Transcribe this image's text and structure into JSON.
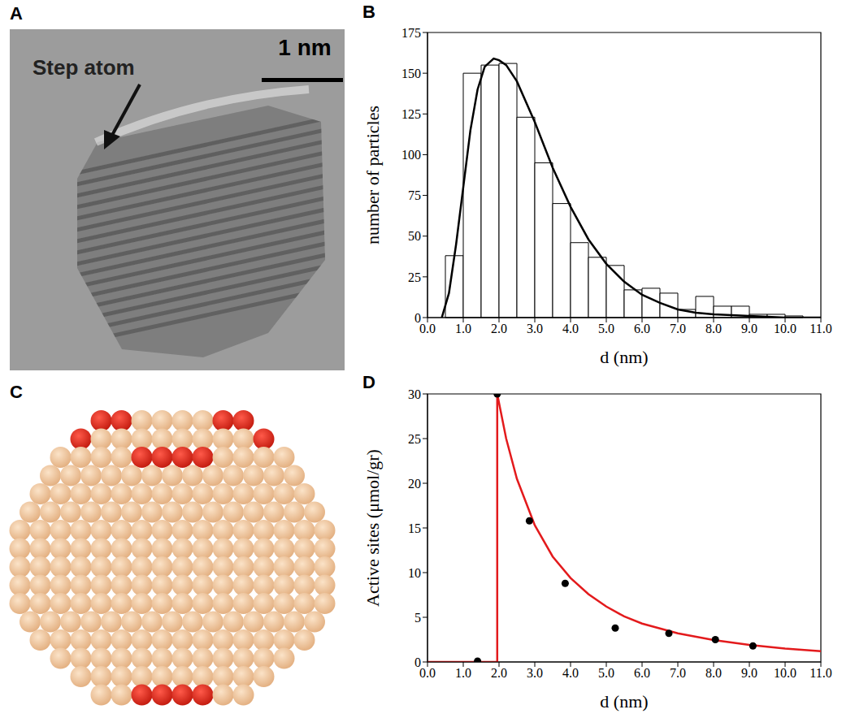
{
  "panels": {
    "A": {
      "label": "A",
      "annotation": "Step atom",
      "scale_bar": "1 nm"
    },
    "C": {
      "label": "C"
    }
  },
  "chart_data": [
    {
      "panel": "B",
      "type": "histogram",
      "x_label": "d (nm)",
      "y_label": "number of particles",
      "bins": [
        0.5,
        1.0,
        1.5,
        2.0,
        2.5,
        3.0,
        3.5,
        4.0,
        4.5,
        5.0,
        5.5,
        6.0,
        6.5,
        7.0,
        7.5,
        8.0,
        8.5,
        9.0,
        9.5,
        10.0,
        10.5
      ],
      "counts": [
        38,
        150,
        155,
        156,
        123,
        95,
        70,
        46,
        37,
        32,
        17,
        18,
        15,
        5,
        13,
        7,
        7,
        2,
        2,
        1
      ],
      "fit": {
        "x": [
          0.4,
          0.6,
          0.8,
          1.0,
          1.2,
          1.4,
          1.6,
          1.85,
          2.0,
          2.2,
          2.5,
          3.0,
          3.5,
          4.0,
          4.5,
          5.0,
          5.5,
          6.0,
          6.5,
          7.0,
          7.5,
          8.0,
          9.0,
          10.0,
          11.0
        ],
        "values": [
          0,
          15,
          45,
          80,
          115,
          140,
          154,
          159,
          158,
          155,
          145,
          120,
          92,
          68,
          48,
          33,
          22,
          14,
          9,
          5,
          3,
          2,
          1,
          0,
          0
        ],
        "color": "#000000"
      },
      "xlim": [
        0,
        11
      ],
      "ylim": [
        0,
        175
      ],
      "xticks": [
        {
          "value": 0,
          "label": "0.0"
        },
        {
          "value": 1,
          "label": "1.0"
        },
        {
          "value": 2,
          "label": "2.0"
        },
        {
          "value": 3,
          "label": "3.0"
        },
        {
          "value": 4,
          "label": "4.0"
        },
        {
          "value": 5,
          "label": "5.0"
        },
        {
          "value": 6,
          "label": "6.0"
        },
        {
          "value": 7,
          "label": "7.0"
        },
        {
          "value": 8,
          "label": "8.0"
        },
        {
          "value": 9,
          "label": "9.0"
        },
        {
          "value": 10,
          "label": "10.0"
        },
        {
          "value": 11,
          "label": "11.0"
        }
      ],
      "yticks": [
        0,
        25,
        50,
        75,
        100,
        125,
        150,
        175
      ]
    },
    {
      "panel": "D",
      "type": "scatter",
      "x_label": "d (nm)",
      "y_label": "Active sites (μmol/gr)",
      "x": [
        1.4,
        1.95,
        2.85,
        3.85,
        5.25,
        6.75,
        8.05,
        9.1
      ],
      "values": [
        0.1,
        30,
        15.8,
        8.8,
        3.8,
        3.2,
        2.5,
        1.8
      ],
      "color": "#000000",
      "fit": {
        "x": [
          0,
          1.95,
          1.95,
          2.2,
          2.5,
          3.0,
          3.5,
          4.0,
          4.5,
          5.0,
          5.5,
          6.0,
          7.0,
          8.0,
          9.0,
          10.0,
          11.0
        ],
        "values": [
          0,
          0,
          30,
          25,
          20.5,
          15.3,
          11.8,
          9.4,
          7.6,
          6.2,
          5.1,
          4.3,
          3.2,
          2.45,
          1.9,
          1.5,
          1.2
        ],
        "color": "#e31a1c"
      },
      "xlim": [
        0,
        11
      ],
      "ylim": [
        0,
        30
      ],
      "xticks": [
        {
          "value": 0,
          "label": "0.0"
        },
        {
          "value": 1,
          "label": "1.0"
        },
        {
          "value": 2,
          "label": "2.0"
        },
        {
          "value": 3,
          "label": "3.0"
        },
        {
          "value": 4,
          "label": "4.0"
        },
        {
          "value": 5,
          "label": "5.0"
        },
        {
          "value": 6,
          "label": "6.0"
        },
        {
          "value": 7,
          "label": "7.0"
        },
        {
          "value": 8,
          "label": "8.0"
        },
        {
          "value": 9,
          "label": "9.0"
        },
        {
          "value": 10,
          "label": "10.0"
        },
        {
          "value": 11,
          "label": "11.0"
        }
      ],
      "yticks": [
        0,
        5,
        10,
        15,
        20,
        25,
        30
      ]
    }
  ]
}
